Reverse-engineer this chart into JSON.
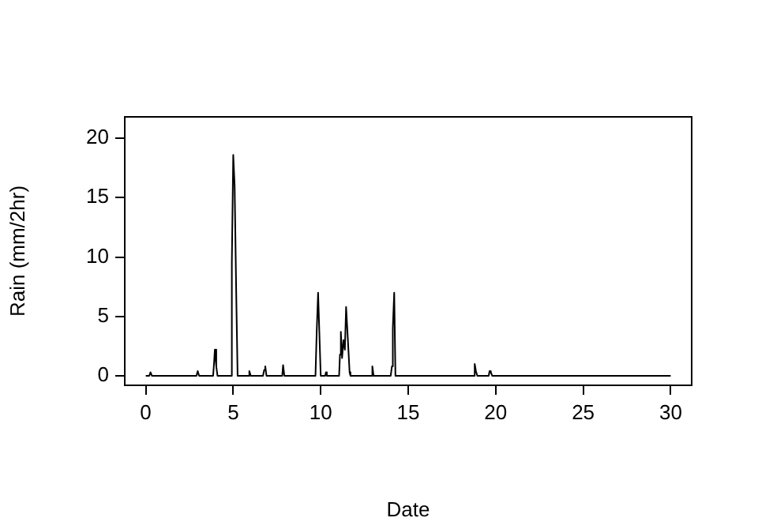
{
  "chart_data": {
    "type": "line",
    "xlabel": "Date",
    "ylabel": "Rain (mm/2hr)",
    "xlim": [
      -1.2,
      31.2
    ],
    "ylim": [
      -0.8,
      21.8
    ],
    "xticks": [
      0,
      5,
      10,
      15,
      20,
      25,
      30
    ],
    "yticks": [
      0,
      5,
      10,
      15,
      20
    ],
    "grid": false,
    "legend": false,
    "marker": "none",
    "line_style": "solid",
    "series": [
      {
        "color": "#000000",
        "x": [
          0,
          0.2,
          0.27,
          0.35,
          2.9,
          2.97,
          3.05,
          3.85,
          3.9,
          3.95,
          4.03,
          4.1,
          4.85,
          4.92,
          5.0,
          5.08,
          5.17,
          5.25,
          5.85,
          5.92,
          6.0,
          6.7,
          6.77,
          6.83,
          6.9,
          7.8,
          7.85,
          7.92,
          9.7,
          9.77,
          9.85,
          9.92,
          10.0,
          10.25,
          10.3,
          10.35,
          11.05,
          11.1,
          11.15,
          11.22,
          11.3,
          11.38,
          11.45,
          11.55,
          11.65,
          11.7,
          12.9,
          12.95,
          13.02,
          14.0,
          14.07,
          14.12,
          14.2,
          14.27,
          18.75,
          18.8,
          18.87,
          18.95,
          19.6,
          19.65,
          19.72,
          19.8,
          30
        ],
        "values": [
          0,
          0,
          0.3,
          0,
          0,
          0.4,
          0,
          0,
          1.0,
          2.2,
          0.8,
          0,
          0,
          9.5,
          18.6,
          16,
          7,
          0,
          0,
          0.4,
          0,
          0,
          0.5,
          0.8,
          0,
          0,
          0.9,
          0,
          0,
          3.7,
          7.0,
          3.7,
          0,
          0,
          0.3,
          0,
          0,
          1.8,
          3.7,
          1.5,
          3.0,
          2.2,
          5.8,
          3.1,
          0.3,
          0,
          0,
          0.8,
          0,
          0,
          0.8,
          4.0,
          7.0,
          0,
          0,
          1.0,
          0.4,
          0,
          0,
          0.4,
          0.3,
          0,
          0
        ]
      }
    ]
  }
}
